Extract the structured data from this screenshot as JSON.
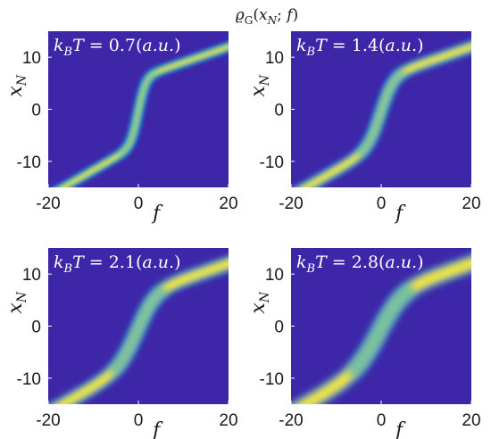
{
  "suptitle": "ϱ_G(x_N; f)",
  "chart_data": [
    {
      "type": "heatmap",
      "annotation": "k_BT = 0.7(a.u.)",
      "kT": 0.7,
      "xlabel": "f",
      "ylabel": "x_N",
      "xlim": [
        -20,
        20
      ],
      "ylim": [
        -15,
        15
      ],
      "xticks": [
        "-20",
        "0",
        "20"
      ],
      "yticks": [
        "10",
        "0",
        "-10"
      ],
      "colormap": "parula"
    },
    {
      "type": "heatmap",
      "annotation": "k_BT = 1.4(a.u.)",
      "kT": 1.4,
      "xlabel": "f",
      "ylabel": "x_N",
      "xlim": [
        -20,
        20
      ],
      "ylim": [
        -15,
        15
      ],
      "xticks": [
        "-20",
        "0",
        "20"
      ],
      "yticks": [
        "10",
        "0",
        "-10"
      ],
      "colormap": "parula"
    },
    {
      "type": "heatmap",
      "annotation": "k_BT = 2.1(a.u.)",
      "kT": 2.1,
      "xlabel": "f",
      "ylabel": "x_N",
      "xlim": [
        -20,
        20
      ],
      "ylim": [
        -15,
        15
      ],
      "xticks": [
        "-20",
        "0",
        "20"
      ],
      "yticks": [
        "10",
        "0",
        "-10"
      ],
      "colormap": "parula"
    },
    {
      "type": "heatmap",
      "annotation": "k_BT = 2.8(a.u.)",
      "kT": 2.8,
      "xlabel": "f",
      "ylabel": "x_N",
      "xlim": [
        -20,
        20
      ],
      "ylim": [
        -15,
        15
      ],
      "xticks": [
        "-20",
        "0",
        "20"
      ],
      "yticks": [
        "10",
        "0",
        "-10"
      ],
      "colormap": "parula"
    }
  ],
  "colors": {
    "background": "#3e26a8",
    "ridge_edge": "#23a7e0",
    "ridge_mid": "#34c18a",
    "ridge_peak": "#f9e624"
  }
}
